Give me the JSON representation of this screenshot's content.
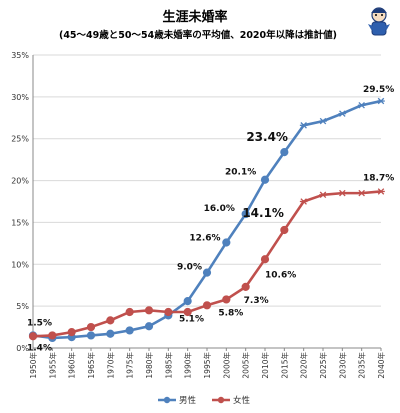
{
  "chart_data": {
    "type": "line",
    "title": "生涯未婚率",
    "subtitle": "(45～49歳と50～54歳未婚率の平均値、2020年以降は推計値)",
    "x": [
      "1950年",
      "1955年",
      "1960年",
      "1965年",
      "1970年",
      "1975年",
      "1980年",
      "1985年",
      "1990年",
      "1995年",
      "2000年",
      "2005年",
      "2010年",
      "2015年",
      "2020年",
      "2025年",
      "2030年",
      "2035年",
      "2040年"
    ],
    "series": [
      {
        "name": "男性",
        "color": "#4F81BD",
        "values": [
          1.5,
          1.2,
          1.3,
          1.5,
          1.7,
          2.1,
          2.6,
          3.9,
          5.6,
          9.0,
          12.6,
          16.0,
          20.1,
          23.4,
          26.6,
          27.1,
          28.0,
          29.0,
          29.5
        ]
      },
      {
        "name": "女性",
        "color": "#C0504D",
        "values": [
          1.4,
          1.5,
          1.9,
          2.5,
          3.3,
          4.3,
          4.5,
          4.3,
          4.3,
          5.1,
          5.8,
          7.3,
          10.6,
          14.1,
          17.5,
          18.3,
          18.5,
          18.5,
          18.7
        ]
      }
    ],
    "yticks": [
      "0%",
      "5%",
      "10%",
      "15%",
      "20%",
      "25%",
      "30%",
      "35%"
    ],
    "ylim": [
      0,
      35
    ],
    "xlabel": "",
    "ylabel": "",
    "grid": true,
    "legend_position": "bottom",
    "data_labels": [
      {
        "series": 0,
        "index": 0,
        "text": "1.5%"
      },
      {
        "series": 1,
        "index": 0,
        "text": "1.4%"
      },
      {
        "series": 0,
        "index": 9,
        "text": "9.0%"
      },
      {
        "series": 0,
        "index": 10,
        "text": "12.6%"
      },
      {
        "series": 0,
        "index": 11,
        "text": "16.0%"
      },
      {
        "series": 0,
        "index": 12,
        "text": "20.1%"
      },
      {
        "series": 0,
        "index": 13,
        "text": "23.4%"
      },
      {
        "series": 0,
        "index": 18,
        "text": "29.5%"
      },
      {
        "series": 1,
        "index": 9,
        "text": "5.1%"
      },
      {
        "series": 1,
        "index": 10,
        "text": "5.8%"
      },
      {
        "series": 1,
        "index": 11,
        "text": "7.3%"
      },
      {
        "series": 1,
        "index": 12,
        "text": "10.6%"
      },
      {
        "series": 1,
        "index": 13,
        "text": "14.1%"
      },
      {
        "series": 1,
        "index": 18,
        "text": "18.7%"
      }
    ]
  },
  "icon": {
    "name": "character-mascot-icon"
  }
}
